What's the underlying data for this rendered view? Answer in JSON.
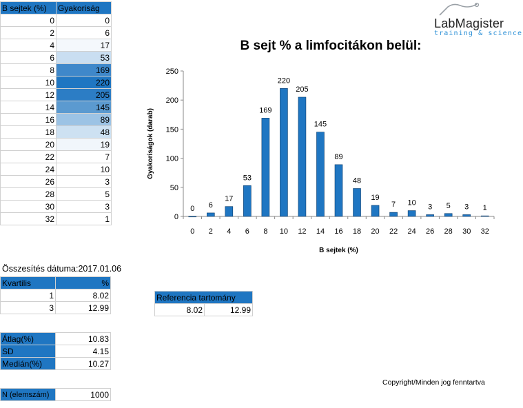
{
  "freq_table": {
    "headers": [
      "B sejtek (%)",
      "Gyakoriság"
    ],
    "rows": [
      {
        "x": "0",
        "f": "0",
        "shade": "#ffffff"
      },
      {
        "x": "2",
        "f": "6",
        "shade": "#ffffff"
      },
      {
        "x": "4",
        "f": "17",
        "shade": "#f4f8fc"
      },
      {
        "x": "6",
        "f": "53",
        "shade": "#c9def1"
      },
      {
        "x": "8",
        "f": "169",
        "shade": "#3f88ca"
      },
      {
        "x": "10",
        "f": "220",
        "shade": "#1f76c2"
      },
      {
        "x": "12",
        "f": "205",
        "shade": "#2c7dc5"
      },
      {
        "x": "14",
        "f": "145",
        "shade": "#5b9ad0"
      },
      {
        "x": "16",
        "f": "89",
        "shade": "#9cc3e5"
      },
      {
        "x": "18",
        "f": "48",
        "shade": "#cde1f2"
      },
      {
        "x": "20",
        "f": "19",
        "shade": "#f1f6fb"
      },
      {
        "x": "22",
        "f": "7",
        "shade": "#ffffff"
      },
      {
        "x": "24",
        "f": "10",
        "shade": "#ffffff"
      },
      {
        "x": "26",
        "f": "3",
        "shade": "#ffffff"
      },
      {
        "x": "28",
        "f": "5",
        "shade": "#ffffff"
      },
      {
        "x": "30",
        "f": "3",
        "shade": "#ffffff"
      },
      {
        "x": "32",
        "f": "1",
        "shade": "#ffffff"
      }
    ]
  },
  "date_label": "Összesítés dátuma:2017.01.06",
  "quartile_table": {
    "headers": [
      "Kvartilis",
      "%"
    ],
    "rows": [
      {
        "q": "1",
        "v": "8.02"
      },
      {
        "q": "3",
        "v": "12.99"
      }
    ]
  },
  "reference": {
    "header": "Referencia tartomány",
    "low": "8.02",
    "high": "12.99"
  },
  "stats": [
    {
      "label": "Átlag(%)",
      "value": "10.83"
    },
    {
      "label": "SD",
      "value": "4.15"
    },
    {
      "label": "Medián(%)",
      "value": "10.27"
    }
  ],
  "n_row": {
    "label": "N (elemszám)",
    "value": "1000"
  },
  "copyright": "Copyright/Minden jog fenntartva",
  "logo": {
    "brand": "LabMagister",
    "tagline": "training & science"
  },
  "colors": {
    "header_blue": "#1f76c2",
    "bar_blue": "#1f76c2"
  },
  "chart_data": {
    "type": "bar",
    "title": "B sejt % a limfocitákon belül:",
    "xlabel": "B sejtek (%)",
    "ylabel": "Gyakoriságok (darab)",
    "categories": [
      "0",
      "2",
      "4",
      "6",
      "8",
      "10",
      "12",
      "14",
      "16",
      "18",
      "20",
      "22",
      "24",
      "26",
      "28",
      "30",
      "32"
    ],
    "values": [
      0,
      6,
      17,
      53,
      169,
      220,
      205,
      145,
      89,
      48,
      19,
      7,
      10,
      3,
      5,
      3,
      1
    ],
    "ylim": [
      0,
      250
    ],
    "yticks": [
      "0",
      "50",
      "100",
      "150",
      "200",
      "250"
    ],
    "grid": false,
    "data_labels": true
  }
}
